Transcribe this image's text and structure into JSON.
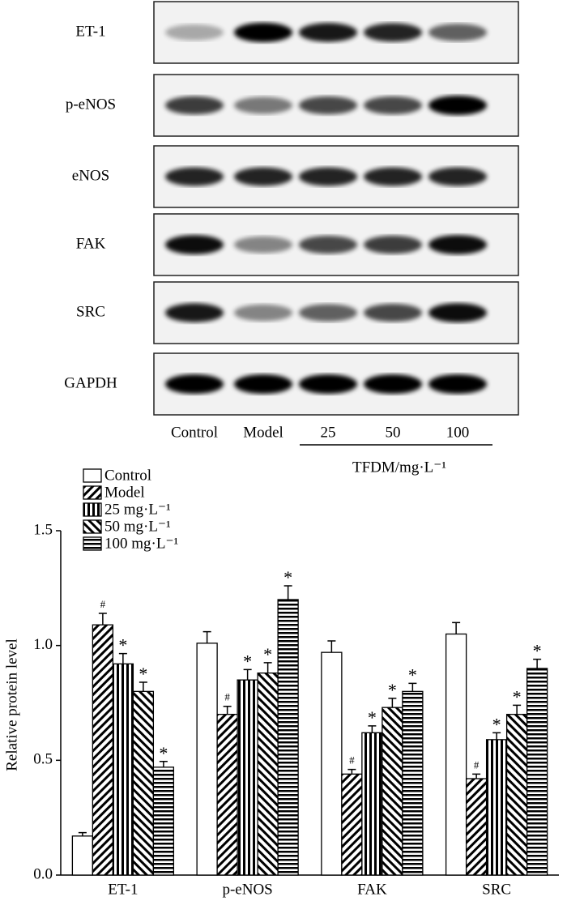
{
  "blot": {
    "rows": [
      "ET-1",
      "p-eNOS",
      "eNOS",
      "FAK",
      "SRC",
      "GAPDH"
    ],
    "lanes": [
      "Control",
      "Model",
      "25",
      "50",
      "100"
    ],
    "group_label": "TFDM/mg·L⁻¹"
  },
  "chart_data": {
    "type": "bar",
    "y_label": "Relative protein level",
    "categories": [
      "ET-1",
      "p-eNOS",
      "FAK",
      "SRC"
    ],
    "series": [
      {
        "name": "Control",
        "color": "#000000",
        "hatch": "none",
        "values": [
          0.17,
          1.01,
          0.97,
          1.05
        ],
        "errors": [
          0.015,
          0.05,
          0.05,
          0.05
        ]
      },
      {
        "name": "Model",
        "color": "#000000",
        "hatch": "/",
        "marker": "#",
        "values": [
          1.09,
          0.7,
          0.44,
          0.42
        ],
        "errors": [
          0.05,
          0.035,
          0.02,
          0.02
        ]
      },
      {
        "name": "25 mg·L⁻¹",
        "color": "#000000",
        "hatch": "|",
        "marker": "*",
        "values": [
          0.92,
          0.85,
          0.62,
          0.59
        ],
        "errors": [
          0.045,
          0.045,
          0.03,
          0.03
        ]
      },
      {
        "name": "50 mg·L⁻¹",
        "color": "#000000",
        "hatch": "\\",
        "marker": "*",
        "values": [
          0.8,
          0.88,
          0.73,
          0.7
        ],
        "errors": [
          0.04,
          0.045,
          0.04,
          0.04
        ]
      },
      {
        "name": "100 mg·L⁻¹",
        "color": "#000000",
        "hatch": "-",
        "marker": "*",
        "values": [
          0.47,
          1.2,
          0.8,
          0.9
        ],
        "errors": [
          0.025,
          0.06,
          0.035,
          0.04
        ]
      }
    ],
    "ylim": [
      0,
      1.5
    ],
    "yticks": [
      {
        "value": 0,
        "label": "0.0"
      },
      0.5,
      {
        "value": 1,
        "label": "1.0"
      },
      1.5
    ],
    "legend": "upper left"
  }
}
